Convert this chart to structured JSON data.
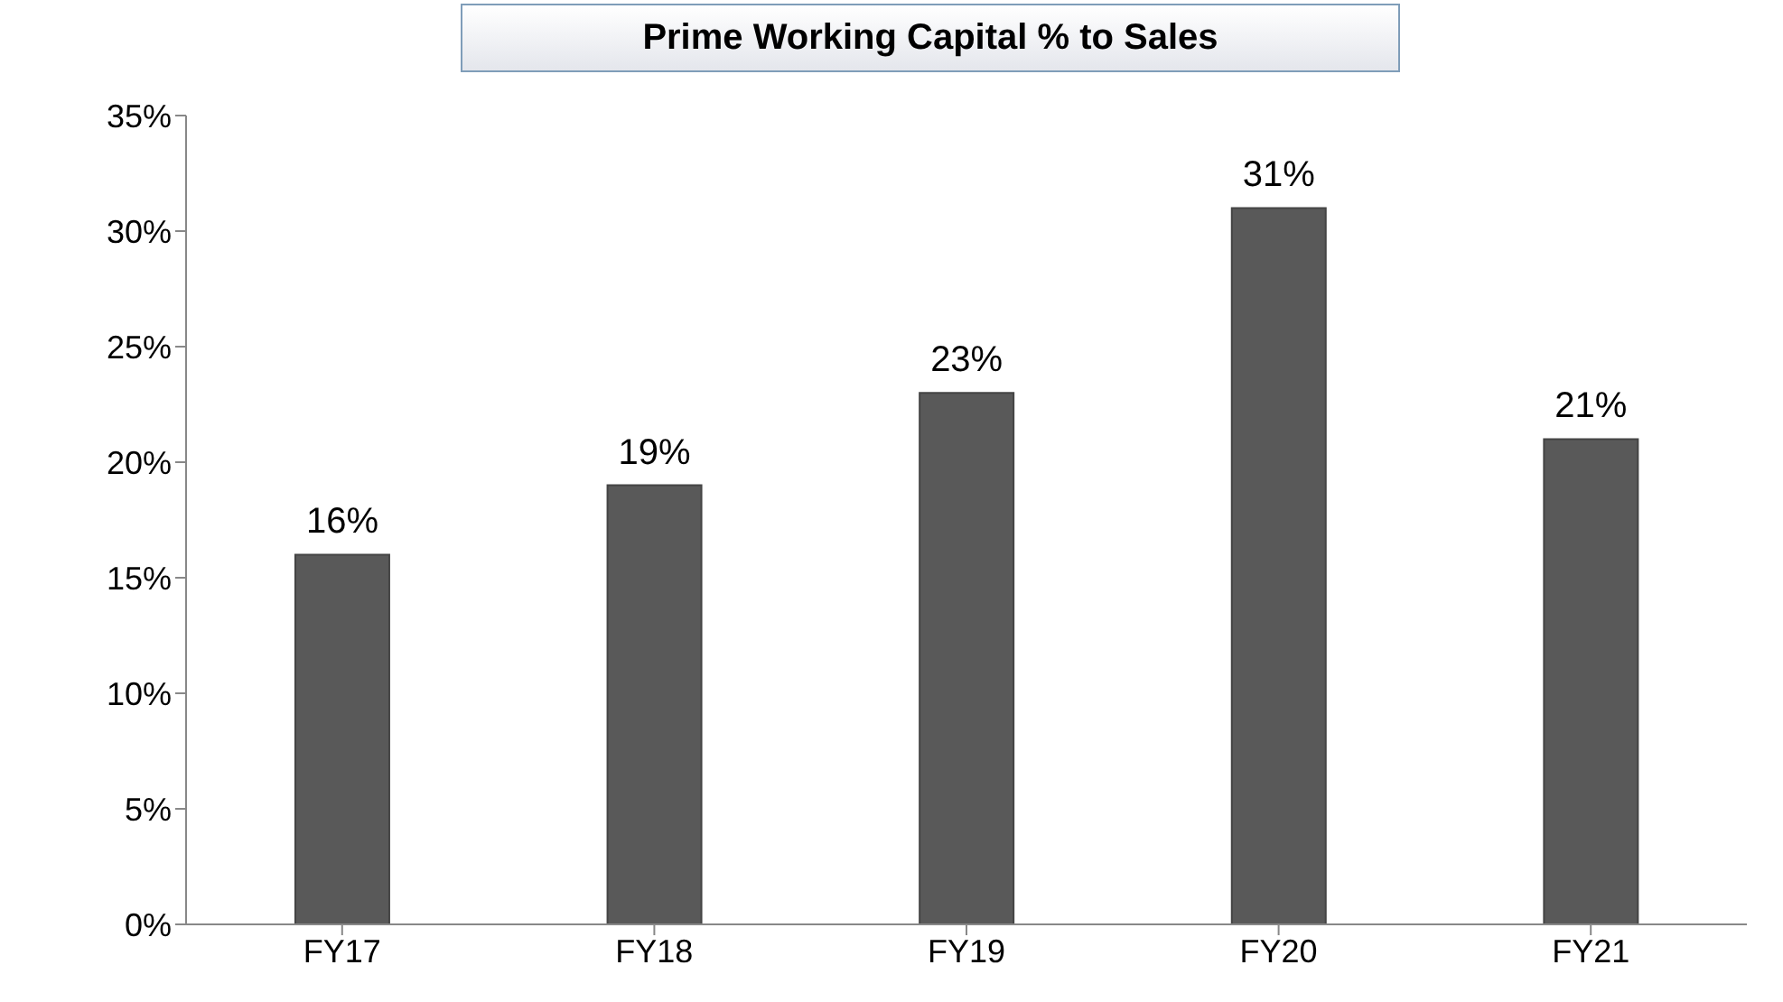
{
  "chart_data": {
    "type": "bar",
    "title": "Prime Working Capital % to Sales",
    "categories": [
      "FY17",
      "FY18",
      "FY19",
      "FY20",
      "FY21"
    ],
    "values": [
      16,
      19,
      23,
      31,
      21
    ],
    "value_labels": [
      "16%",
      "19%",
      "23%",
      "31%",
      "21%"
    ],
    "color": "#595959",
    "ylim": [
      0,
      35
    ],
    "yticks": [
      {
        "value": 0,
        "label": "0%"
      },
      {
        "value": 5,
        "label": "5%"
      },
      {
        "value": 10,
        "label": "10%"
      },
      {
        "value": 15,
        "label": "15%"
      },
      {
        "value": 20,
        "label": "20%"
      },
      {
        "value": 25,
        "label": "25%"
      },
      {
        "value": 30,
        "label": "30%"
      },
      {
        "value": 35,
        "label": "35%"
      }
    ],
    "grid": false
  }
}
